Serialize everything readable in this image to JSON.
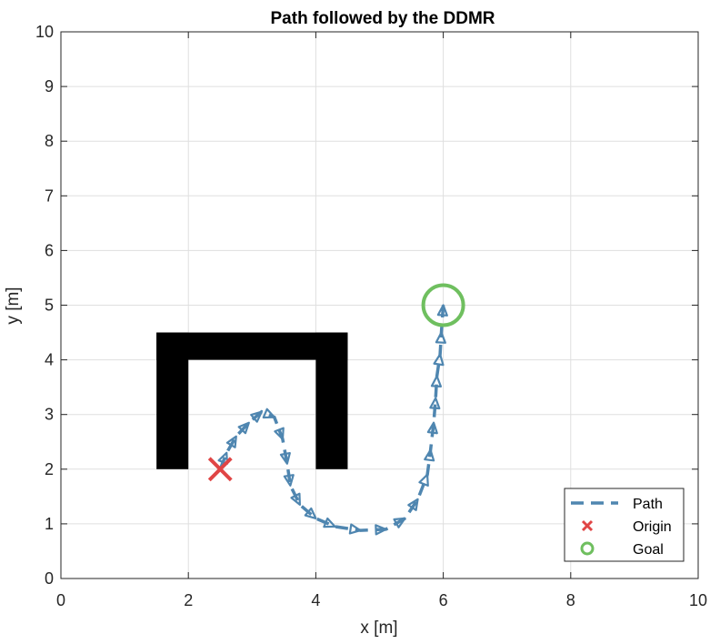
{
  "chart_data": {
    "type": "line",
    "title": "Path followed by the DDMR",
    "xlabel": "x [m]",
    "ylabel": "y [m]",
    "xlim": [
      0,
      10
    ],
    "ylim": [
      0,
      10
    ],
    "xticks": [
      0,
      2,
      4,
      6,
      8,
      10
    ],
    "yticks": [
      0,
      1,
      2,
      3,
      4,
      5,
      6,
      7,
      8,
      9,
      10
    ],
    "grid": true,
    "legend_position": "bottom-right",
    "obstacles": [
      {
        "x0": 1.5,
        "x1": 2.0,
        "y0": 2.0,
        "y1": 4.5
      },
      {
        "x0": 4.0,
        "x1": 4.5,
        "y0": 2.0,
        "y1": 4.5
      },
      {
        "x0": 1.5,
        "x1": 4.5,
        "y0": 4.0,
        "y1": 4.5
      }
    ],
    "series": [
      {
        "name": "Path",
        "style": "dashed-with-arrows",
        "color": "#4f86b0",
        "points": [
          [
            2.5,
            2.0
          ],
          [
            2.6,
            2.3
          ],
          [
            2.75,
            2.6
          ],
          [
            2.95,
            2.85
          ],
          [
            3.15,
            3.05
          ],
          [
            3.35,
            2.95
          ],
          [
            3.48,
            2.55
          ],
          [
            3.55,
            2.1
          ],
          [
            3.6,
            1.7
          ],
          [
            3.75,
            1.35
          ],
          [
            4.0,
            1.1
          ],
          [
            4.3,
            0.95
          ],
          [
            4.7,
            0.88
          ],
          [
            5.1,
            0.9
          ],
          [
            5.4,
            1.1
          ],
          [
            5.6,
            1.45
          ],
          [
            5.75,
            1.9
          ],
          [
            5.8,
            2.35
          ],
          [
            5.85,
            2.85
          ],
          [
            5.88,
            3.3
          ],
          [
            5.9,
            3.7
          ],
          [
            5.95,
            4.1
          ],
          [
            5.97,
            4.5
          ],
          [
            6.0,
            5.0
          ]
        ]
      },
      {
        "name": "Origin",
        "marker": "x",
        "color": "#e04545",
        "points": [
          [
            2.5,
            2.0
          ]
        ]
      },
      {
        "name": "Goal",
        "marker": "o",
        "color": "#6fbf5f",
        "points": [
          [
            6.0,
            5.0
          ]
        ]
      }
    ]
  }
}
